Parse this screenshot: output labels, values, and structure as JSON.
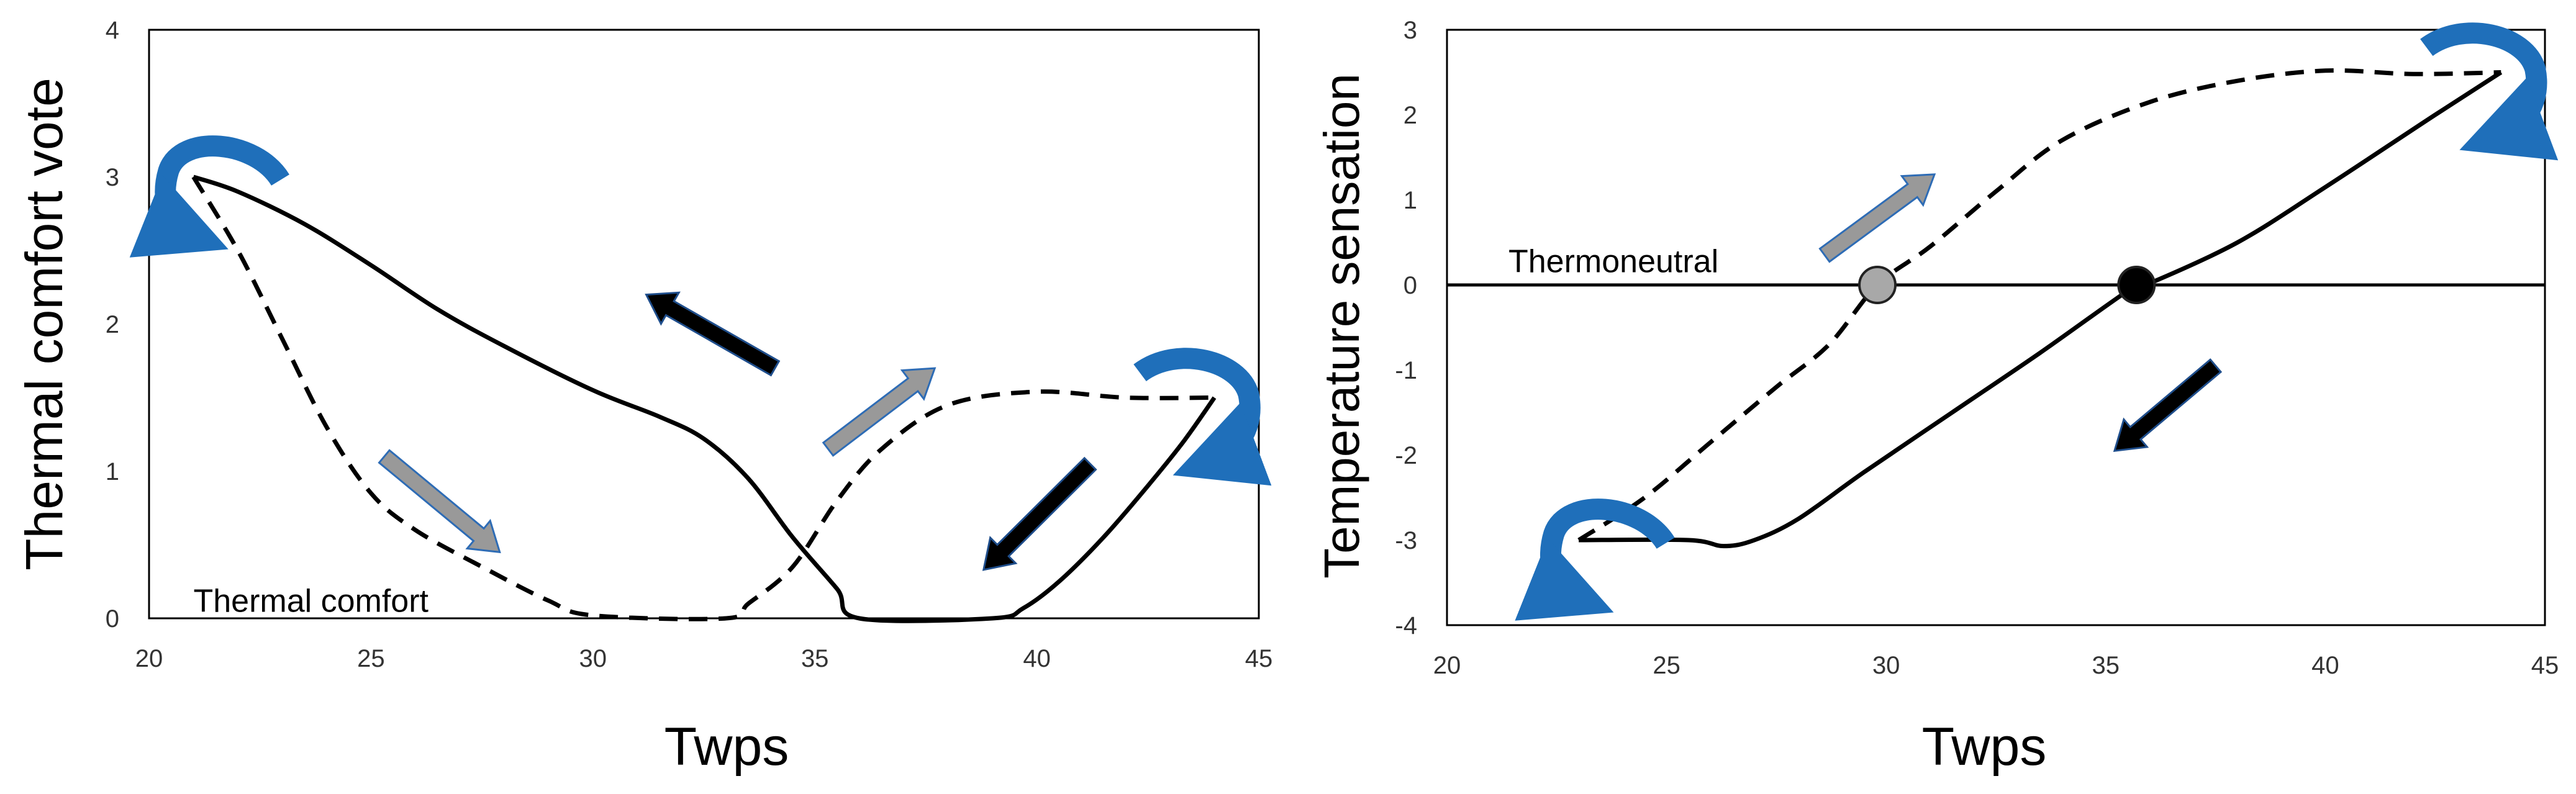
{
  "chart_data": [
    {
      "type": "line",
      "ylabel": "Thermal comfort vote",
      "xlabel": "Twps",
      "xlim": [
        20,
        45
      ],
      "ylim": [
        0,
        4
      ],
      "x_ticks": [
        "20",
        "25",
        "30",
        "35",
        "40",
        "45"
      ],
      "y_ticks": [
        "0",
        "1",
        "2",
        "3",
        "4"
      ],
      "x_tick_values": [
        20,
        25,
        30,
        35,
        40,
        45
      ],
      "y_tick_values": [
        0,
        1,
        2,
        3,
        4
      ],
      "grid": false,
      "annotations": [
        {
          "text": "Thermal comfort",
          "x": 21,
          "y": 0.12
        }
      ],
      "series": [
        {
          "style": "solid",
          "color": "#000000",
          "points": [
            [
              44,
              1.5
            ],
            [
              43.3,
              1.2
            ],
            [
              42.5,
              0.9
            ],
            [
              41.5,
              0.55
            ],
            [
              40.5,
              0.25
            ],
            [
              39.7,
              0.07
            ],
            [
              39,
              0.0
            ],
            [
              36,
              0.0
            ],
            [
              35.5,
              0.2
            ],
            [
              34.5,
              0.55
            ],
            [
              33.5,
              0.95
            ],
            [
              32.5,
              1.22
            ],
            [
              31.5,
              1.37
            ],
            [
              30,
              1.55
            ],
            [
              28,
              1.85
            ],
            [
              26.5,
              2.1
            ],
            [
              25,
              2.4
            ],
            [
              23.5,
              2.68
            ],
            [
              22,
              2.9
            ],
            [
              21,
              3.0
            ]
          ]
        },
        {
          "style": "dashed",
          "color": "#000000",
          "points": [
            [
              21,
              3.0
            ],
            [
              22,
              2.5
            ],
            [
              23,
              1.9
            ],
            [
              24,
              1.3
            ],
            [
              25,
              0.85
            ],
            [
              26,
              0.6
            ],
            [
              27.5,
              0.35
            ],
            [
              29,
              0.12
            ],
            [
              30,
              0.02
            ],
            [
              33,
              0.0
            ],
            [
              33.5,
              0.1
            ],
            [
              34.5,
              0.35
            ],
            [
              35.5,
              0.8
            ],
            [
              36.5,
              1.15
            ],
            [
              38,
              1.45
            ],
            [
              40,
              1.54
            ],
            [
              42,
              1.5
            ],
            [
              44,
              1.5
            ]
          ]
        }
      ],
      "direction_arrows": [
        {
          "color": "#000000",
          "from": [
            34.1,
            1.7
          ],
          "to": [
            31.2,
            2.2
          ]
        },
        {
          "color": "#999999",
          "from": [
            25.3,
            1.1
          ],
          "to": [
            27.9,
            0.45
          ]
        },
        {
          "color": "#999999",
          "from": [
            35.3,
            1.15
          ],
          "to": [
            37.7,
            1.7
          ]
        },
        {
          "color": "#000000",
          "from": [
            41.2,
            1.05
          ],
          "to": [
            38.8,
            0.33
          ]
        }
      ],
      "cycle_arrows": [
        {
          "color": "#1f6fba",
          "at": [
            21,
            3.0
          ],
          "side": "left"
        },
        {
          "color": "#1f6fba",
          "at": [
            44,
            1.5
          ],
          "side": "right"
        }
      ]
    },
    {
      "type": "line",
      "ylabel": "Temperature sensation",
      "xlabel": "Twps",
      "xlim": [
        20,
        45
      ],
      "ylim": [
        -4,
        3
      ],
      "x_ticks": [
        "20",
        "25",
        "30",
        "35",
        "40",
        "45"
      ],
      "y_ticks": [
        "-4",
        "-3",
        "-2",
        "-1",
        "0",
        "1",
        "2",
        "3"
      ],
      "x_tick_values": [
        20,
        25,
        30,
        35,
        40,
        45
      ],
      "y_tick_values": [
        -4,
        -3,
        -2,
        -1,
        0,
        1,
        2,
        3
      ],
      "grid": false,
      "annotations": [
        {
          "text": "Thermoneutral",
          "x": 21.4,
          "y": 0.28
        }
      ],
      "reference_line": {
        "y": 0,
        "color": "#000000"
      },
      "markers": [
        {
          "x": 29.8,
          "y": 0,
          "color": "#a8a8a8"
        },
        {
          "x": 35.7,
          "y": 0,
          "color": "#000000"
        }
      ],
      "series": [
        {
          "style": "solid",
          "color": "#000000",
          "points": [
            [
              44,
              2.5
            ],
            [
              42.5,
              2.0
            ],
            [
              40,
              1.15
            ],
            [
              38,
              0.5
            ],
            [
              36,
              0.02
            ],
            [
              35.7,
              0.0
            ],
            [
              33.5,
              -0.8
            ],
            [
              31.5,
              -1.5
            ],
            [
              29.5,
              -2.2
            ],
            [
              28,
              -2.75
            ],
            [
              27,
              -3.0
            ],
            [
              26.3,
              -3.07
            ],
            [
              25.5,
              -3.0
            ],
            [
              23,
              -3.0
            ]
          ]
        },
        {
          "style": "dashed",
          "color": "#000000",
          "points": [
            [
              23,
              -3.0
            ],
            [
              24.5,
              -2.5
            ],
            [
              26,
              -1.85
            ],
            [
              27.5,
              -1.2
            ],
            [
              28.7,
              -0.7
            ],
            [
              29.8,
              0.0
            ],
            [
              31,
              0.45
            ],
            [
              32.5,
              1.1
            ],
            [
              34,
              1.7
            ],
            [
              36,
              2.15
            ],
            [
              38,
              2.4
            ],
            [
              40,
              2.52
            ],
            [
              42,
              2.48
            ],
            [
              44,
              2.5
            ]
          ]
        }
      ],
      "direction_arrows": [
        {
          "color": "#999999",
          "from": [
            28.6,
            0.35
          ],
          "to": [
            31.1,
            1.3
          ]
        },
        {
          "color": "#000000",
          "from": [
            37.5,
            -0.95
          ],
          "to": [
            35.2,
            -1.95
          ]
        }
      ],
      "cycle_arrows": [
        {
          "color": "#1f6fba",
          "at": [
            23,
            -3.0
          ],
          "side": "left"
        },
        {
          "color": "#1f6fba",
          "at": [
            44,
            2.5
          ],
          "side": "right"
        }
      ]
    }
  ]
}
